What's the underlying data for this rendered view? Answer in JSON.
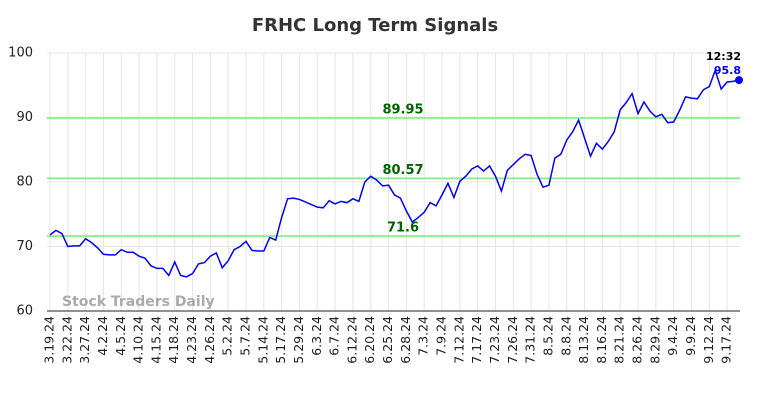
{
  "chart_data": {
    "type": "line",
    "title": "FRHC Long Term Signals",
    "categories": [
      "3.19.24",
      null,
      null,
      "3.22.24",
      null,
      null,
      "3.27.24",
      null,
      null,
      "4.2.24",
      null,
      null,
      "4.5.24",
      null,
      null,
      "4.10.24",
      null,
      null,
      "4.15.24",
      null,
      null,
      "4.18.24",
      null,
      null,
      "4.23.24",
      null,
      null,
      "4.26.24",
      null,
      null,
      "5.2.24",
      null,
      null,
      "5.7.24",
      null,
      null,
      "5.14.24",
      null,
      null,
      "5.17.24",
      null,
      null,
      "5.29.24",
      null,
      null,
      "6.3.24",
      null,
      null,
      "6.7.24",
      null,
      null,
      "6.12.24",
      null,
      null,
      "6.20.24",
      null,
      null,
      "6.25.24",
      null,
      null,
      "6.28.24",
      null,
      null,
      "7.3.24",
      null,
      null,
      "7.9.24",
      null,
      null,
      "7.12.24",
      null,
      null,
      "7.17.24",
      null,
      null,
      "7.23.24",
      null,
      null,
      "7.26.24",
      null,
      null,
      "7.31.24",
      null,
      null,
      "8.5.24",
      null,
      null,
      "8.8.24",
      null,
      null,
      "8.13.24",
      null,
      null,
      "8.16.24",
      null,
      null,
      "8.21.24",
      null,
      null,
      "8.26.24",
      null,
      null,
      "8.29.24",
      null,
      null,
      "9.4.24",
      null,
      null,
      "9.9.24",
      null,
      null,
      "9.12.24",
      null,
      null,
      "9.17.24",
      null,
      null
    ],
    "series": [
      {
        "name": "FRHC",
        "color": "#0000ff",
        "values": [
          71.8,
          72.5,
          72,
          70,
          70.1,
          70.1,
          71.2,
          70.6,
          69.8,
          68.8,
          68.7,
          68.7,
          69.5,
          69.1,
          69.1,
          68.5,
          68.2,
          67.0,
          66.6,
          66.6,
          65.5,
          67.6,
          65.5,
          65.3,
          65.8,
          67.3,
          67.5,
          68.5,
          69.0,
          66.7,
          67.8,
          69.5,
          70.0,
          70.8,
          69.4,
          69.3,
          69.3,
          71.4,
          71.0,
          74.5,
          77.4,
          77.5,
          77.3,
          76.9,
          76.5,
          76.1,
          76.0,
          77.1,
          76.6,
          77.0,
          76.8,
          77.4,
          77.0,
          80.0,
          80.9,
          80.3,
          79.4,
          79.5,
          78.0,
          77.5,
          75.5,
          73.8,
          74.5,
          75.3,
          76.8,
          76.3,
          78.0,
          79.8,
          77.6,
          80.1,
          80.9,
          82.0,
          82.5,
          81.7,
          82.5,
          80.9,
          78.6,
          81.8,
          82.7,
          83.6,
          84.3,
          84.1,
          81.2,
          79.2,
          79.5,
          83.7,
          84.3,
          86.5,
          87.8,
          89.6,
          86.8,
          84.0,
          86.0,
          85.1,
          86.3,
          87.8,
          91.2,
          92.3,
          93.7,
          90.6,
          92.4,
          91.0,
          90.1,
          90.5,
          89.2,
          89.3,
          91.1,
          93.2,
          93.0,
          92.9,
          94.3,
          94.8,
          97.3,
          94.4,
          95.5,
          95.6,
          95.8
        ]
      }
    ],
    "ylim": [
      60,
      100
    ],
    "yticks": [
      60,
      70,
      80,
      90,
      100
    ],
    "grid": true,
    "hlines": [
      89.95,
      80.57,
      71.6
    ],
    "hline_color": "#90ee90",
    "hline_label_color": "#006400",
    "last_time": "12:32",
    "watermark": "Stock Traders Daily"
  }
}
